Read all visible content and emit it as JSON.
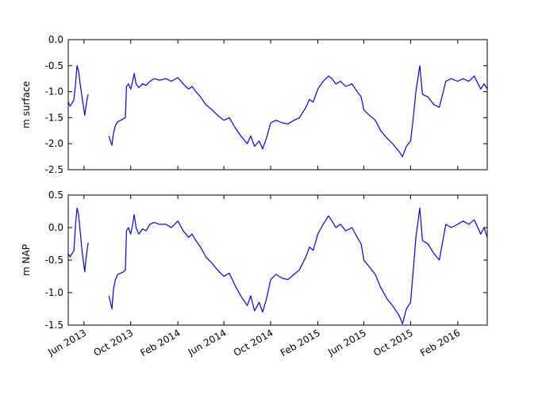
{
  "chart_data": {
    "type": "line",
    "line_color": "#0000ff",
    "x_tick_labels": [
      "Jun 2013",
      "Oct 2013",
      "Feb 2014",
      "Jun 2014",
      "Oct 2014",
      "Feb 2015",
      "Jun 2015",
      "Oct 2015",
      "Feb 2016"
    ],
    "x_tick_dates": [
      "2013-06-01",
      "2013-10-01",
      "2014-02-01",
      "2014-06-01",
      "2014-10-01",
      "2015-02-01",
      "2015-06-01",
      "2015-10-01",
      "2016-02-01"
    ],
    "xlim": [
      "2013-04-21",
      "2016-04-18"
    ],
    "panels": [
      {
        "ylabel": "m surface",
        "ylim": [
          -2.5,
          0.0
        ],
        "yticks": [
          "0.0",
          "-0.5",
          "-1.0",
          "-1.5",
          "-2.0",
          "-2.5"
        ],
        "segments": [
          [
            [
              "2013-04-21",
              -1.2
            ],
            [
              "2013-04-26",
              -1.28
            ],
            [
              "2013-05-01",
              -1.22
            ],
            [
              "2013-05-06",
              -1.15
            ],
            [
              "2013-05-10",
              -0.85
            ],
            [
              "2013-05-14",
              -0.5
            ],
            [
              "2013-05-18",
              -0.6
            ],
            [
              "2013-05-22",
              -0.85
            ],
            [
              "2013-05-26",
              -1.05
            ],
            [
              "2013-05-30",
              -1.25
            ],
            [
              "2013-06-03",
              -1.45
            ],
            [
              "2013-06-06",
              -1.3
            ],
            [
              "2013-06-09",
              -1.15
            ],
            [
              "2013-06-12",
              -1.05
            ]
          ],
          [
            [
              "2013-08-05",
              -1.85
            ],
            [
              "2013-08-09",
              -1.95
            ],
            [
              "2013-08-13",
              -2.03
            ],
            [
              "2013-08-17",
              -1.8
            ],
            [
              "2013-08-22",
              -1.65
            ],
            [
              "2013-08-28",
              -1.58
            ],
            [
              "2013-09-05",
              -1.55
            ],
            [
              "2013-09-12",
              -1.52
            ],
            [
              "2013-09-17",
              -1.5
            ],
            [
              "2013-09-20",
              -0.9
            ],
            [
              "2013-09-25",
              -0.85
            ],
            [
              "2013-10-01",
              -0.95
            ],
            [
              "2013-10-06",
              -0.8
            ],
            [
              "2013-10-10",
              -0.65
            ],
            [
              "2013-10-15",
              -0.85
            ],
            [
              "2013-10-22",
              -0.92
            ],
            [
              "2013-11-01",
              -0.85
            ],
            [
              "2013-11-10",
              -0.88
            ],
            [
              "2013-11-20",
              -0.8
            ],
            [
              "2013-12-01",
              -0.75
            ],
            [
              "2013-12-15",
              -0.78
            ],
            [
              "2014-01-01",
              -0.75
            ],
            [
              "2014-01-15",
              -0.8
            ],
            [
              "2014-02-01",
              -0.73
            ],
            [
              "2014-02-15",
              -0.85
            ],
            [
              "2014-03-01",
              -0.95
            ],
            [
              "2014-03-10",
              -0.9
            ],
            [
              "2014-03-20",
              -1.0
            ],
            [
              "2014-04-01",
              -1.1
            ],
            [
              "2014-04-15",
              -1.25
            ],
            [
              "2014-05-01",
              -1.35
            ],
            [
              "2014-05-15",
              -1.45
            ],
            [
              "2014-06-01",
              -1.55
            ],
            [
              "2014-06-15",
              -1.5
            ],
            [
              "2014-07-01",
              -1.7
            ],
            [
              "2014-07-15",
              -1.85
            ],
            [
              "2014-08-01",
              -2.0
            ],
            [
              "2014-08-10",
              -1.85
            ],
            [
              "2014-08-20",
              -2.05
            ],
            [
              "2014-09-01",
              -1.95
            ],
            [
              "2014-09-10",
              -2.1
            ],
            [
              "2014-09-20",
              -1.9
            ],
            [
              "2014-10-01",
              -1.6
            ],
            [
              "2014-10-15",
              -1.55
            ],
            [
              "2014-11-01",
              -1.6
            ],
            [
              "2014-11-15",
              -1.62
            ],
            [
              "2014-12-01",
              -1.55
            ],
            [
              "2014-12-15",
              -1.5
            ],
            [
              "2015-01-01",
              -1.3
            ],
            [
              "2015-01-10",
              -1.15
            ],
            [
              "2015-01-20",
              -1.2
            ],
            [
              "2015-02-01",
              -0.95
            ],
            [
              "2015-02-15",
              -0.8
            ],
            [
              "2015-03-01",
              -0.7
            ],
            [
              "2015-03-10",
              -0.75
            ],
            [
              "2015-03-20",
              -0.85
            ],
            [
              "2015-04-01",
              -0.8
            ],
            [
              "2015-04-15",
              -0.9
            ],
            [
              "2015-05-01",
              -0.85
            ],
            [
              "2015-05-15",
              -1.0
            ],
            [
              "2015-05-25",
              -1.1
            ],
            [
              "2015-06-01",
              -1.35
            ],
            [
              "2015-06-15",
              -1.45
            ],
            [
              "2015-07-01",
              -1.55
            ],
            [
              "2015-07-15",
              -1.75
            ],
            [
              "2015-08-01",
              -1.9
            ],
            [
              "2015-08-15",
              -2.0
            ],
            [
              "2015-09-01",
              -2.15
            ],
            [
              "2015-09-10",
              -2.25
            ],
            [
              "2015-09-20",
              -2.05
            ],
            [
              "2015-10-01",
              -1.95
            ],
            [
              "2015-10-08",
              -1.5
            ],
            [
              "2015-10-15",
              -1.0
            ],
            [
              "2015-10-25",
              -0.5
            ],
            [
              "2015-11-01",
              -1.05
            ],
            [
              "2015-11-15",
              -1.1
            ],
            [
              "2015-12-01",
              -1.25
            ],
            [
              "2015-12-15",
              -1.3
            ],
            [
              "2016-01-01",
              -0.8
            ],
            [
              "2016-01-15",
              -0.75
            ],
            [
              "2016-02-01",
              -0.8
            ],
            [
              "2016-02-15",
              -0.75
            ],
            [
              "2016-03-01",
              -0.8
            ],
            [
              "2016-03-15",
              -0.7
            ],
            [
              "2016-04-01",
              -0.95
            ],
            [
              "2016-04-10",
              -0.85
            ],
            [
              "2016-04-18",
              -0.95
            ]
          ]
        ]
      },
      {
        "ylabel": "m NAP",
        "ylim": [
          -1.5,
          0.5
        ],
        "yticks": [
          "0.5",
          "0.0",
          "-0.5",
          "-1.0",
          "-1.5"
        ],
        "segments": [
          [
            [
              "2013-04-21",
              -0.4
            ],
            [
              "2013-04-26",
              -0.45
            ],
            [
              "2013-05-01",
              -0.4
            ],
            [
              "2013-05-06",
              -0.35
            ],
            [
              "2013-05-10",
              0.05
            ],
            [
              "2013-05-14",
              0.3
            ],
            [
              "2013-05-18",
              0.2
            ],
            [
              "2013-05-22",
              -0.05
            ],
            [
              "2013-05-26",
              -0.3
            ],
            [
              "2013-05-30",
              -0.5
            ],
            [
              "2013-06-03",
              -0.68
            ],
            [
              "2013-06-06",
              -0.5
            ],
            [
              "2013-06-09",
              -0.35
            ],
            [
              "2013-06-12",
              -0.23
            ]
          ],
          [
            [
              "2013-08-05",
              -1.05
            ],
            [
              "2013-08-09",
              -1.15
            ],
            [
              "2013-08-13",
              -1.25
            ],
            [
              "2013-08-17",
              -0.95
            ],
            [
              "2013-08-22",
              -0.8
            ],
            [
              "2013-08-28",
              -0.72
            ],
            [
              "2013-09-05",
              -0.7
            ],
            [
              "2013-09-12",
              -0.68
            ],
            [
              "2013-09-17",
              -0.65
            ],
            [
              "2013-09-20",
              -0.05
            ],
            [
              "2013-09-25",
              0.0
            ],
            [
              "2013-10-01",
              -0.1
            ],
            [
              "2013-10-06",
              0.05
            ],
            [
              "2013-10-10",
              0.2
            ],
            [
              "2013-10-15",
              0.0
            ],
            [
              "2013-10-22",
              -0.1
            ],
            [
              "2013-11-01",
              -0.02
            ],
            [
              "2013-11-10",
              -0.05
            ],
            [
              "2013-11-20",
              0.05
            ],
            [
              "2013-12-01",
              0.08
            ],
            [
              "2013-12-15",
              0.05
            ],
            [
              "2014-01-01",
              0.05
            ],
            [
              "2014-01-15",
              0.0
            ],
            [
              "2014-02-01",
              0.1
            ],
            [
              "2014-02-15",
              -0.05
            ],
            [
              "2014-03-01",
              -0.15
            ],
            [
              "2014-03-10",
              -0.1
            ],
            [
              "2014-03-20",
              -0.2
            ],
            [
              "2014-04-01",
              -0.3
            ],
            [
              "2014-04-15",
              -0.45
            ],
            [
              "2014-05-01",
              -0.55
            ],
            [
              "2014-05-15",
              -0.65
            ],
            [
              "2014-06-01",
              -0.75
            ],
            [
              "2014-06-15",
              -0.7
            ],
            [
              "2014-07-01",
              -0.9
            ],
            [
              "2014-07-15",
              -1.05
            ],
            [
              "2014-08-01",
              -1.2
            ],
            [
              "2014-08-10",
              -1.05
            ],
            [
              "2014-08-20",
              -1.28
            ],
            [
              "2014-09-01",
              -1.15
            ],
            [
              "2014-09-10",
              -1.3
            ],
            [
              "2014-09-20",
              -1.1
            ],
            [
              "2014-10-01",
              -0.8
            ],
            [
              "2014-10-15",
              -0.72
            ],
            [
              "2014-11-01",
              -0.78
            ],
            [
              "2014-11-15",
              -0.8
            ],
            [
              "2014-12-01",
              -0.72
            ],
            [
              "2014-12-15",
              -0.65
            ],
            [
              "2015-01-01",
              -0.45
            ],
            [
              "2015-01-10",
              -0.3
            ],
            [
              "2015-01-20",
              -0.35
            ],
            [
              "2015-02-01",
              -0.1
            ],
            [
              "2015-02-15",
              0.05
            ],
            [
              "2015-03-01",
              0.18
            ],
            [
              "2015-03-10",
              0.1
            ],
            [
              "2015-03-20",
              0.0
            ],
            [
              "2015-04-01",
              0.05
            ],
            [
              "2015-04-15",
              -0.05
            ],
            [
              "2015-05-01",
              0.0
            ],
            [
              "2015-05-15",
              -0.15
            ],
            [
              "2015-05-25",
              -0.25
            ],
            [
              "2015-06-01",
              -0.5
            ],
            [
              "2015-06-15",
              -0.6
            ],
            [
              "2015-07-01",
              -0.72
            ],
            [
              "2015-07-15",
              -0.92
            ],
            [
              "2015-08-01",
              -1.1
            ],
            [
              "2015-08-15",
              -1.2
            ],
            [
              "2015-09-01",
              -1.35
            ],
            [
              "2015-09-10",
              -1.48
            ],
            [
              "2015-09-20",
              -1.25
            ],
            [
              "2015-10-01",
              -1.15
            ],
            [
              "2015-10-08",
              -0.65
            ],
            [
              "2015-10-15",
              -0.15
            ],
            [
              "2015-10-25",
              0.3
            ],
            [
              "2015-11-01",
              -0.2
            ],
            [
              "2015-11-15",
              -0.25
            ],
            [
              "2015-12-01",
              -0.4
            ],
            [
              "2015-12-15",
              -0.5
            ],
            [
              "2016-01-01",
              0.05
            ],
            [
              "2016-01-15",
              0.0
            ],
            [
              "2016-02-01",
              0.05
            ],
            [
              "2016-02-15",
              0.1
            ],
            [
              "2016-03-01",
              0.05
            ],
            [
              "2016-03-15",
              0.12
            ],
            [
              "2016-04-01",
              -0.1
            ],
            [
              "2016-04-10",
              0.0
            ],
            [
              "2016-04-18",
              -0.15
            ]
          ]
        ]
      }
    ]
  }
}
